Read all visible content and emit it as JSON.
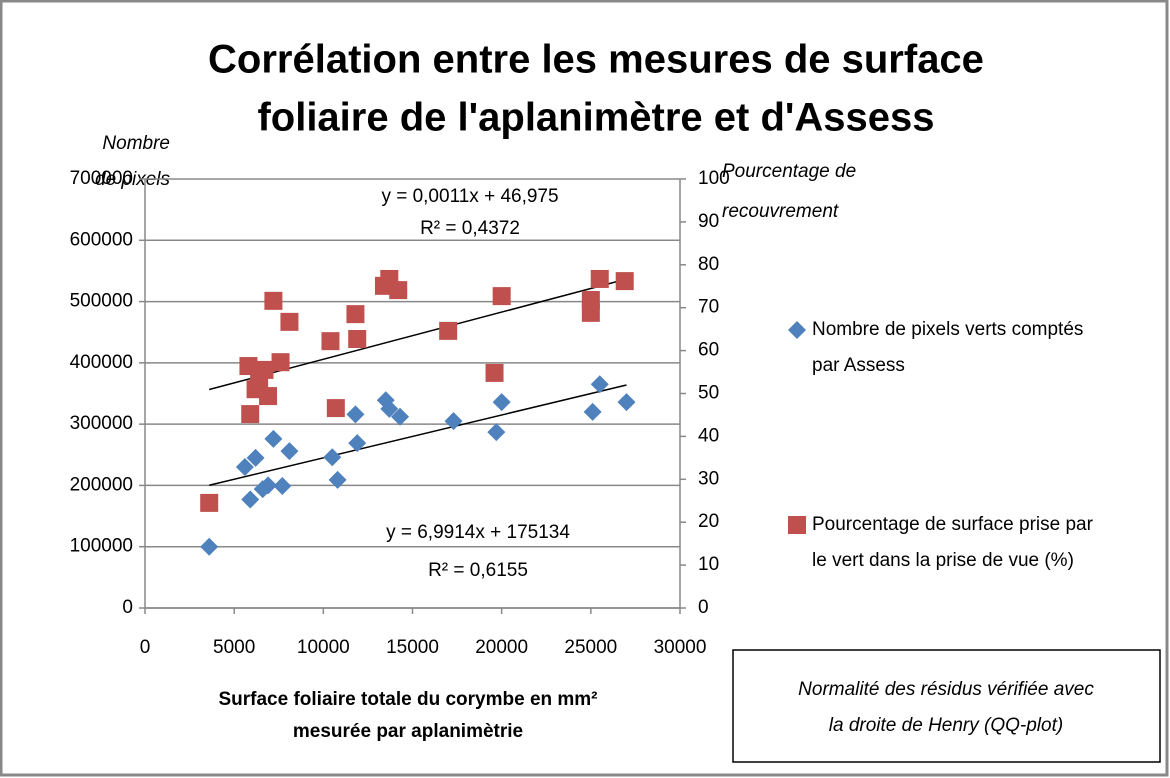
{
  "chart_data": {
    "type": "scatter",
    "title_lines": [
      "Corrélation entre les mesures de surface",
      "foliaire de l'aplanimètre et d'Assess"
    ],
    "y_label_lines": [
      "Nombre",
      "de pixels"
    ],
    "y2_label_lines": [
      "Pourcentage de",
      "recouvrement"
    ],
    "x_label_lines": [
      "Surface foliaire totale du corymbe en mm²",
      "mesurée par aplanimètrie"
    ],
    "annotation_lines": [
      "Normalité des résidus vérifiée avec",
      "la droite de Henry (QQ-plot)"
    ],
    "xlim": [
      0,
      30000
    ],
    "xticks": [
      0,
      5000,
      10000,
      15000,
      20000,
      25000,
      30000
    ],
    "ylim": [
      0,
      700000
    ],
    "yticks": [
      0,
      100000,
      200000,
      300000,
      400000,
      500000,
      600000,
      700000
    ],
    "y2lim": [
      0,
      100
    ],
    "y2ticks": [
      0,
      10,
      20,
      30,
      40,
      50,
      60,
      70,
      80,
      90,
      100
    ],
    "grid": true,
    "legend": "right",
    "series": [
      {
        "name_lines": [
          "Nombre de pixels verts comptés",
          "par Assess"
        ],
        "color": "#4f81bd",
        "marker": "diamond",
        "x": [
          3600,
          5600,
          5900,
          6200,
          6600,
          6900,
          7200,
          7700,
          8100,
          10500,
          10800,
          11800,
          11900,
          13500,
          13700,
          14300,
          17300,
          19700,
          20000,
          25100,
          25500,
          27000
        ],
        "values": [
          100000,
          230000,
          177000,
          245000,
          194000,
          200000,
          276000,
          199000,
          256000,
          246000,
          209000,
          316000,
          269000,
          339000,
          325000,
          312000,
          305000,
          287000,
          336000,
          320000,
          365000,
          336000
        ],
        "trendline": {
          "equation": "y = 6,9914x + 175134",
          "r_squared_label": "R² = 0,6155",
          "slope": 6.9914,
          "intercept": 175134
        }
      },
      {
        "name_lines": [
          "Pourcentage de surface prise par",
          "le vert dans la prise de vue (%)"
        ],
        "color": "#c0504d",
        "marker": "square",
        "axis": "y2",
        "x": [
          3600,
          5800,
          5900,
          6200,
          6400,
          6700,
          6900,
          7200,
          7600,
          8100,
          10400,
          10700,
          11800,
          11900,
          13400,
          13700,
          14200,
          17000,
          19600,
          20000,
          25000,
          25000,
          25500,
          26900
        ],
        "values": [
          24.5,
          56.4,
          45.2,
          51,
          52.9,
          55.5,
          49.4,
          71.6,
          57.3,
          66.7,
          62.2,
          46.6,
          68.5,
          62.7,
          75.1,
          76.7,
          74.1,
          64.6,
          54.8,
          72.7,
          71.8,
          68.8,
          76.7,
          76.2
        ],
        "trendline": {
          "equation": "y = 0,0011x + 46,975",
          "r_squared_label": "R² = 0,4372",
          "slope": 0.0011,
          "intercept": 46.975
        }
      }
    ]
  }
}
